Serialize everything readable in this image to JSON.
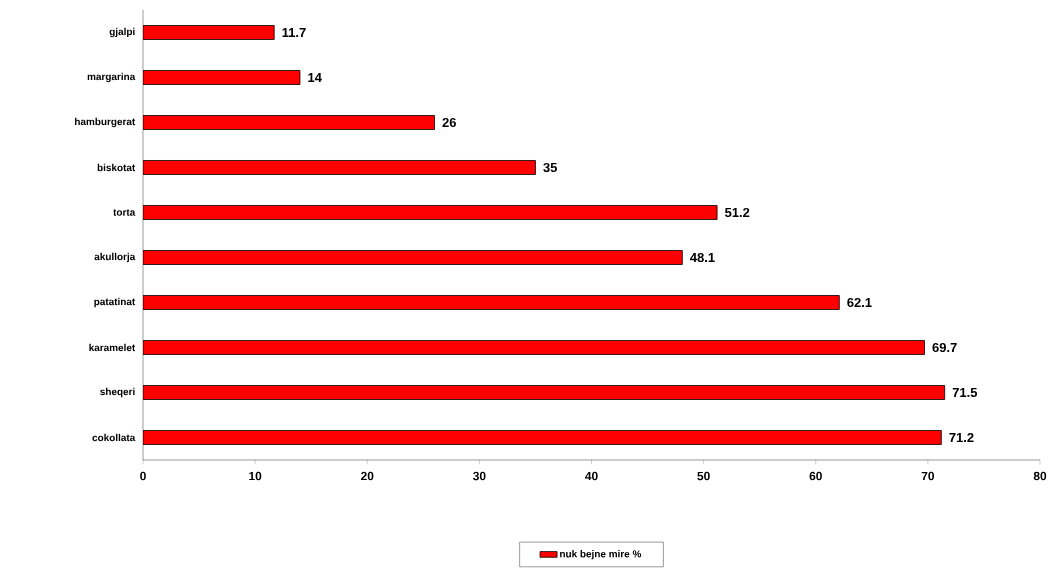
{
  "chart_data": {
    "type": "bar",
    "orientation": "horizontal",
    "categories": [
      "gjalpi",
      "margarina",
      "hamburgerat",
      "biskotat",
      "torta",
      "akullorja",
      "patatinat",
      "karamelet",
      "sheqeri",
      "cokollata"
    ],
    "series": [
      {
        "name": "nuk bejne mire %",
        "color": "#ff0000",
        "values": [
          11.7,
          14,
          26,
          35,
          51.2,
          48.1,
          62.1,
          69.7,
          71.5,
          71.2
        ]
      }
    ],
    "xlim": [
      0,
      80
    ],
    "xticks": [
      0,
      10,
      20,
      30,
      40,
      50,
      60,
      70,
      80
    ],
    "data_labels": true,
    "legend": "bottom",
    "grid": false
  }
}
